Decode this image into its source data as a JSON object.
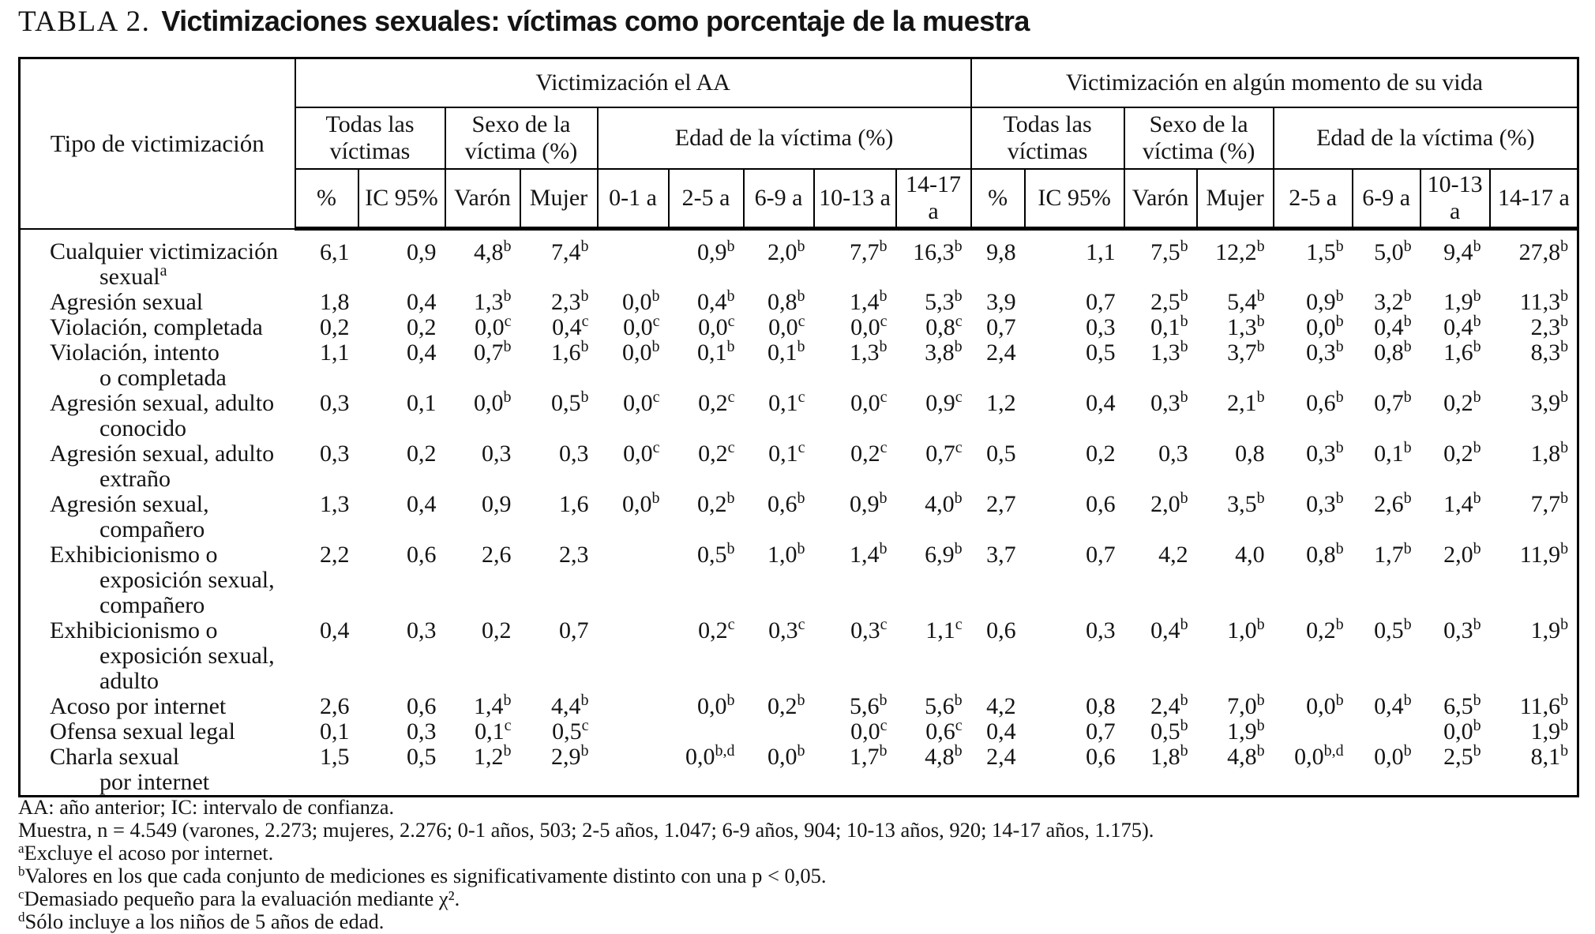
{
  "title": {
    "prefix": "TABLA 2.",
    "text": "Victimizaciones sexuales: víctimas como porcentaje de la muestra"
  },
  "table": {
    "corner_header": "Tipo de victimización",
    "groups": [
      {
        "label": "Victimización el AA"
      },
      {
        "label": "Victimización en algún momento de su vida"
      }
    ],
    "subgroups": [
      {
        "label": "Todas las víctimas"
      },
      {
        "label": "Sexo de la víctima (%)"
      },
      {
        "label": "Edad de la víctima (%)"
      },
      {
        "label": "Todas las víctimas"
      },
      {
        "label": "Sexo de la víctima (%)"
      },
      {
        "label": "Edad de la víctima (%)"
      }
    ],
    "columns": [
      "%",
      "IC 95%",
      "Varón",
      "Mujer",
      "0-1 a",
      "2-5 a",
      "6-9 a",
      "10-13 a",
      "14-17 a",
      "%",
      "IC 95%",
      "Varón",
      "Mujer",
      "2-5 a",
      "6-9 a",
      "10-13 a",
      "14-17 a"
    ],
    "rows": [
      {
        "label_lines": [
          "Cualquier victimización",
          "sexual^a"
        ],
        "values": [
          "6,1",
          "0,9",
          "4,8^b",
          "7,4^b",
          "",
          "0,9^b",
          "2,0^b",
          "7,7^b",
          "16,3^b",
          "9,8",
          "1,1",
          "7,5^b",
          "12,2^b",
          "1,5^b",
          "5,0^b",
          "9,4^b",
          "27,8^b"
        ]
      },
      {
        "label_lines": [
          "Agresión sexual"
        ],
        "values": [
          "1,8",
          "0,4",
          "1,3^b",
          "2,3^b",
          "0,0^b",
          "0,4^b",
          "0,8^b",
          "1,4^b",
          "5,3^b",
          "3,9",
          "0,7",
          "2,5^b",
          "5,4^b",
          "0,9^b",
          "3,2^b",
          "1,9^b",
          "11,3^b"
        ]
      },
      {
        "label_lines": [
          "Violación, completada"
        ],
        "values": [
          "0,2",
          "0,2",
          "0,0^c",
          "0,4^c",
          "0,0^c",
          "0,0^c",
          "0,0^c",
          "0,0^c",
          "0,8^c",
          "0,7",
          "0,3",
          "0,1^b",
          "1,3^b",
          "0,0^b",
          "0,4^b",
          "0,4^b",
          "2,3^b"
        ]
      },
      {
        "label_lines": [
          "Violación, intento",
          "o completada"
        ],
        "values": [
          "1,1",
          "0,4",
          "0,7^b",
          "1,6^b",
          "0,0^b",
          "0,1^b",
          "0,1^b",
          "1,3^b",
          "3,8^b",
          "2,4",
          "0,5",
          "1,3^b",
          "3,7^b",
          "0,3^b",
          "0,8^b",
          "1,6^b",
          "8,3^b"
        ]
      },
      {
        "label_lines": [
          "Agresión sexual, adulto",
          "conocido"
        ],
        "values": [
          "0,3",
          "0,1",
          "0,0^b",
          "0,5^b",
          "0,0^c",
          "0,2^c",
          "0,1^c",
          "0,0^c",
          "0,9^c",
          "1,2",
          "0,4",
          "0,3^b",
          "2,1^b",
          "0,6^b",
          "0,7^b",
          "0,2^b",
          "3,9^b"
        ]
      },
      {
        "label_lines": [
          "Agresión sexual, adulto",
          "extraño"
        ],
        "values": [
          "0,3",
          "0,2",
          "0,3",
          "0,3",
          "0,0^c",
          "0,2^c",
          "0,1^c",
          "0,2^c",
          "0,7^c",
          "0,5",
          "0,2",
          "0,3",
          "0,8",
          "0,3^b",
          "0,1^b",
          "0,2^b",
          "1,8^b"
        ]
      },
      {
        "label_lines": [
          "Agresión sexual,",
          "compañero"
        ],
        "values": [
          "1,3",
          "0,4",
          "0,9",
          "1,6",
          "0,0^b",
          "0,2^b",
          "0,6^b",
          "0,9^b",
          "4,0^b",
          "2,7",
          "0,6",
          "2,0^b",
          "3,5^b",
          "0,3^b",
          "2,6^b",
          "1,4^b",
          "7,7^b"
        ]
      },
      {
        "label_lines": [
          "Exhibicionismo o",
          "exposición sexual,",
          "compañero"
        ],
        "values": [
          "2,2",
          "0,6",
          "2,6",
          "2,3",
          "",
          "0,5^b",
          "1,0^b",
          "1,4^b",
          "6,9^b",
          "3,7",
          "0,7",
          "4,2",
          "4,0",
          "0,8^b",
          "1,7^b",
          "2,0^b",
          "11,9^b"
        ]
      },
      {
        "label_lines": [
          "Exhibicionismo o",
          "exposición sexual,",
          "adulto"
        ],
        "values": [
          "0,4",
          "0,3",
          "0,2",
          "0,7",
          "",
          "0,2^c",
          "0,3^c",
          "0,3^c",
          "1,1^c",
          "0,6",
          "0,3",
          "0,4^b",
          "1,0^b",
          "0,2^b",
          "0,5^b",
          "0,3^b",
          "1,9^b"
        ]
      },
      {
        "label_lines": [
          "Acoso por internet"
        ],
        "values": [
          "2,6",
          "0,6",
          "1,4^b",
          "4,4^b",
          "",
          "0,0^b",
          "0,2^b",
          "5,6^b",
          "5,6^b",
          "4,2",
          "0,8",
          "2,4^b",
          "7,0^b",
          "0,0^b",
          "0,4^b",
          "6,5^b",
          "11,6^b"
        ]
      },
      {
        "label_lines": [
          "Ofensa sexual legal"
        ],
        "values": [
          "0,1",
          "0,3",
          "0,1^c",
          "0,5^c",
          "",
          "",
          "",
          "0,0^c",
          "0,6^c",
          "0,4",
          "0,7",
          "0,5^b",
          "1,9^b",
          "",
          "",
          "0,0^b",
          "1,9^b"
        ]
      },
      {
        "label_lines": [
          "Charla sexual",
          "por internet"
        ],
        "values": [
          "1,5",
          "0,5",
          "1,2^b",
          "2,9^b",
          "",
          "0,0^b,d",
          "0,0^b",
          "1,7^b",
          "4,8^b",
          "2,4",
          "0,6",
          "1,8^b",
          "4,8^b",
          "0,0^b,d",
          "0,0^b",
          "2,5^b",
          "8,1^b"
        ]
      }
    ]
  },
  "footnotes": [
    {
      "sup": "",
      "text": "AA: año anterior; IC: intervalo de confianza."
    },
    {
      "sup": "",
      "text": "Muestra, n = 4.549 (varones, 2.273; mujeres, 2.276; 0-1 años, 503; 2-5 años, 1.047; 6-9 años, 904; 10-13 años, 920; 14-17 años, 1.175)."
    },
    {
      "sup": "a",
      "text": "Excluye el acoso por internet."
    },
    {
      "sup": "b",
      "text": "Valores en los que cada conjunto de mediciones es significativamente distinto con una p < 0,05."
    },
    {
      "sup": "c",
      "text": "Demasiado pequeño para la evaluación mediante χ²."
    },
    {
      "sup": "d",
      "text": "Sólo incluye a los niños de 5 años de edad."
    }
  ]
}
